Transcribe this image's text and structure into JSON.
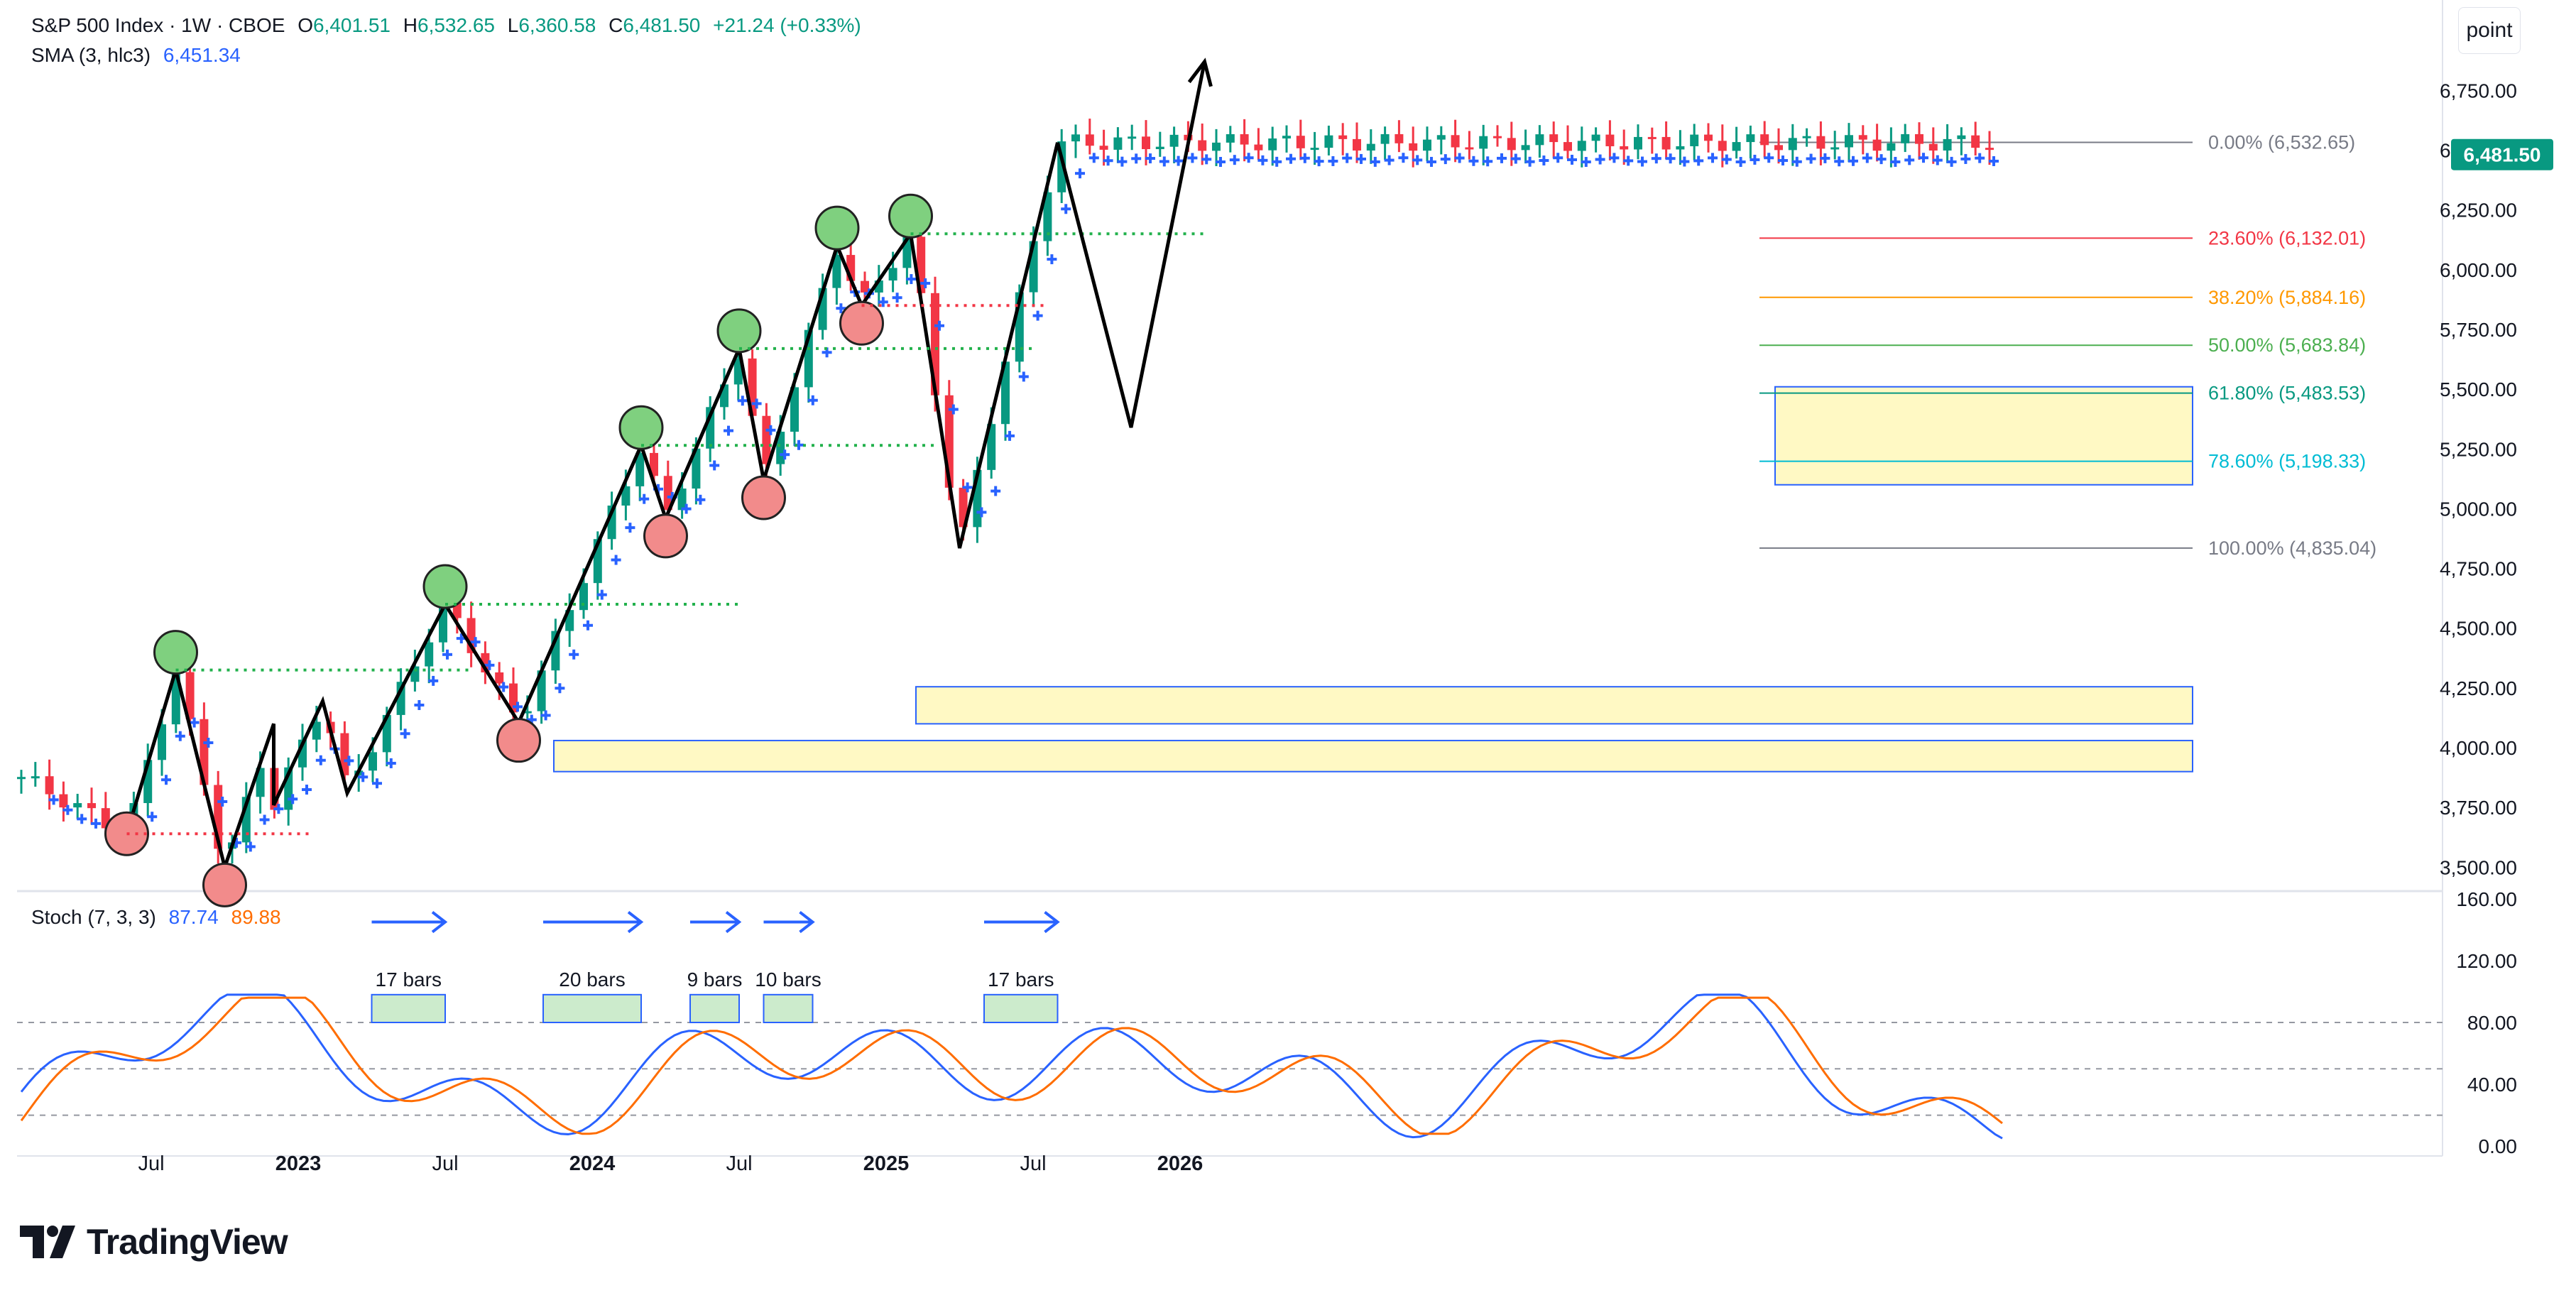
{
  "header": {
    "symbol": "S&P 500 Index · 1W · CBOE",
    "open_label": "O",
    "open": "6,401.51",
    "high_label": "H",
    "high": "6,532.65",
    "low_label": "L",
    "low": "6,360.58",
    "close_label": "C",
    "close": "6,481.50",
    "change": "+21.24 (+0.33%)",
    "sma_label": "SMA (3, hlc3)",
    "sma_value": "6,451.34",
    "stoch_label": "Stoch (7, 3, 3)",
    "stoch_k": "87.74",
    "stoch_d": "89.88"
  },
  "unit_button": "point",
  "brand": "TradingView",
  "last_price_tag": "6,481.50",
  "chart_data": [
    {
      "type": "candlestick",
      "title": "S&P 500 Index · 1W · CBOE",
      "x_ticks": [
        "Jul",
        "2023",
        "Jul",
        "2024",
        "Jul",
        "2025",
        "Jul",
        "2026"
      ],
      "y_ticks": [
        "3,500.00",
        "3,750.00",
        "4,000.00",
        "4,250.00",
        "4,500.00",
        "4,750.00",
        "5,000.00",
        "5,250.00",
        "5,500.00",
        "5,750.00",
        "6,000.00",
        "6,250.00",
        "6,500.00",
        "6,750.00"
      ],
      "ylim": [
        3400,
        6950
      ],
      "swing_points": [
        {
          "date": "2022-06",
          "value": 3640
        },
        {
          "date": "2022-08",
          "value": 4325
        },
        {
          "date": "2022-10",
          "value": 3500
        },
        {
          "date": "2022-12",
          "value": 4100
        },
        {
          "date": "2022-12",
          "value": 3760
        },
        {
          "date": "2023-02",
          "value": 4195
        },
        {
          "date": "2023-03",
          "value": 3810
        },
        {
          "date": "2023-07",
          "value": 4600
        },
        {
          "date": "2023-10",
          "value": 4105
        },
        {
          "date": "2024-03",
          "value": 5265
        },
        {
          "date": "2024-04",
          "value": 4960
        },
        {
          "date": "2024-07",
          "value": 5670
        },
        {
          "date": "2024-08",
          "value": 5120
        },
        {
          "date": "2024-11",
          "value": 6100
        },
        {
          "date": "2024-12",
          "value": 5850
        },
        {
          "date": "2025-02",
          "value": 6150
        },
        {
          "date": "2025-04",
          "value": 4835
        },
        {
          "date": "2025-08",
          "value": 6532
        }
      ],
      "projection": [
        {
          "date": "2025-08",
          "value": 6532
        },
        {
          "date": "2025-11",
          "value": 5340
        },
        {
          "date": "2026-02",
          "value": 6870
        }
      ],
      "fibonacci": [
        {
          "label": "0.00% (6,532.65)",
          "value": 6532.65,
          "color": "#787b86"
        },
        {
          "label": "23.60% (6,132.01)",
          "value": 6132.01,
          "color": "#f23645"
        },
        {
          "label": "38.20% (5,884.16)",
          "value": 5884.16,
          "color": "#ff9800"
        },
        {
          "label": "50.00% (5,683.84)",
          "value": 5683.84,
          "color": "#4caf50"
        },
        {
          "label": "61.80% (5,483.53)",
          "value": 5483.53,
          "color": "#089981"
        },
        {
          "label": "78.60% (5,198.33)",
          "value": 5198.33,
          "color": "#00bcd4"
        },
        {
          "label": "100.00% (4,835.04)",
          "value": 4835.04,
          "color": "#787b86"
        }
      ],
      "zones": [
        {
          "from": 4100,
          "to": 4255
        },
        {
          "from": 3900,
          "to": 4030
        },
        {
          "from": 5100,
          "to": 5510
        }
      ],
      "colors": {
        "up": "#089981",
        "down": "#f23645",
        "sma": "#2962ff",
        "swing": "#000000",
        "fill": "#fff59d"
      }
    },
    {
      "type": "line",
      "title": "Stoch (7, 3, 3)",
      "y_ticks": [
        "0.00",
        "40.00",
        "80.00",
        "120.00",
        "160.00"
      ],
      "ylim": [
        -5,
        165
      ],
      "levels": [
        20,
        50,
        80
      ],
      "series": [
        {
          "name": "87.74",
          "color": "#2962ff"
        },
        {
          "name": "89.88",
          "color": "#ff6d00"
        }
      ],
      "annotations": [
        {
          "text": "17 bars",
          "start": "2023-04",
          "end": "2023-07"
        },
        {
          "text": "20 bars",
          "start": "2023-11",
          "end": "2024-03"
        },
        {
          "text": "9 bars",
          "start": "2024-05",
          "end": "2024-07"
        },
        {
          "text": "10 bars",
          "start": "2024-08",
          "end": "2024-10"
        },
        {
          "text": "17 bars",
          "start": "2025-05",
          "end": "2025-08"
        }
      ]
    }
  ]
}
